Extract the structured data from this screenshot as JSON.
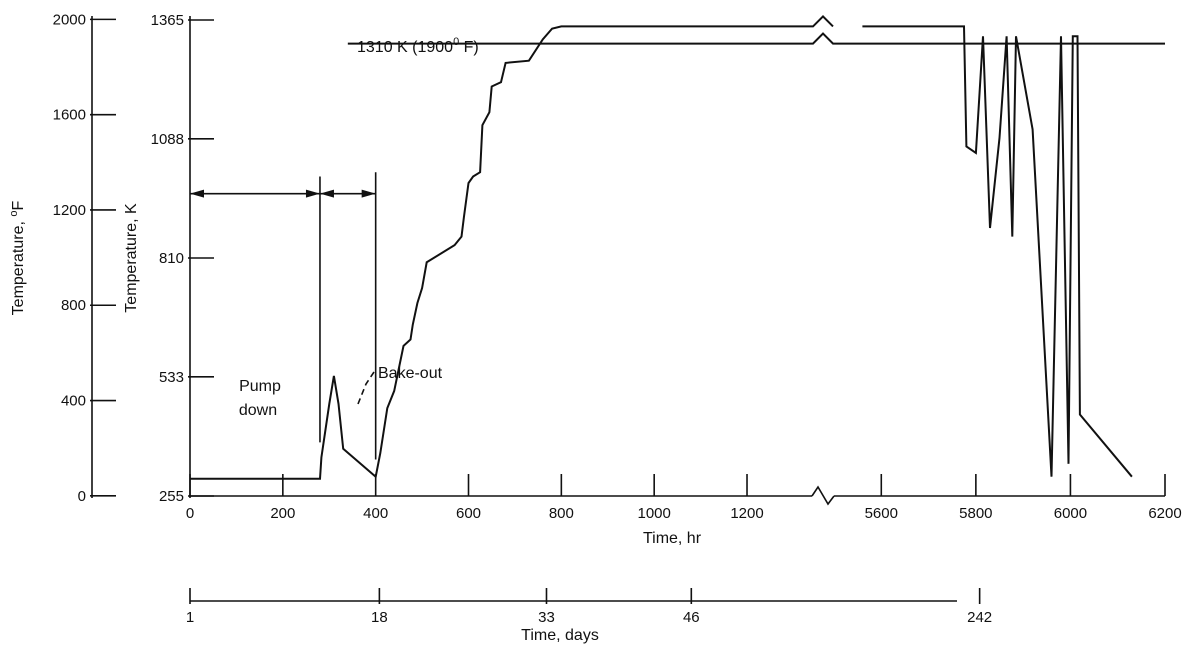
{
  "chart_data": {
    "type": "line",
    "xlabel": "Time, hr",
    "ylabel_k": "Temperature, K",
    "ylabel_f": "Temperature, °F",
    "days_label": "Time, days",
    "x_ticks_left": [
      0,
      200,
      400,
      600,
      800,
      1000,
      1200
    ],
    "x_ticks_right": [
      5600,
      5800,
      6000,
      6200
    ],
    "x_range_left": [
      0,
      1340
    ],
    "x_range_right": [
      5500,
      6200
    ],
    "ylim_k": [
      255,
      1365
    ],
    "y_ticks_k": [
      255,
      533,
      810,
      1088,
      1365
    ],
    "y_ticks_f": [
      0,
      400,
      800,
      1200,
      1600,
      2000
    ],
    "days_ticks": [
      {
        "day": "1",
        "hr": 0
      },
      {
        "day": "18",
        "hr": 408
      },
      {
        "day": "33",
        "hr": 768
      },
      {
        "day": "46",
        "hr": 1080
      },
      {
        "day": "242",
        "hr": 5808
      }
    ],
    "setpoint": {
      "label": "1310 K (1900",
      "sup": "0",
      "unit": " F)",
      "value_k": 1310
    },
    "annotations": {
      "pump_label_1": "Pump",
      "pump_label_2": "down",
      "bake_label": "Bake-out",
      "pump_start_hr": 0,
      "pump_end_hr": 280,
      "bake_end_hr": 400
    },
    "grid": false,
    "series": [
      {
        "points_hr_k": [
          [
            0,
            295
          ],
          [
            280,
            295
          ],
          [
            283,
            345
          ],
          [
            300,
            470
          ],
          [
            310,
            535
          ],
          [
            320,
            470
          ],
          [
            330,
            365
          ],
          [
            400,
            300
          ],
          [
            410,
            355
          ],
          [
            425,
            460
          ],
          [
            440,
            500
          ],
          [
            460,
            605
          ],
          [
            475,
            620
          ],
          [
            480,
            655
          ],
          [
            490,
            705
          ],
          [
            500,
            740
          ],
          [
            510,
            800
          ],
          [
            570,
            840
          ],
          [
            585,
            860
          ],
          [
            590,
            905
          ],
          [
            595,
            945
          ],
          [
            600,
            985
          ],
          [
            610,
            1000
          ],
          [
            625,
            1010
          ],
          [
            630,
            1120
          ],
          [
            645,
            1150
          ],
          [
            650,
            1210
          ],
          [
            670,
            1220
          ],
          [
            680,
            1265
          ],
          [
            730,
            1270
          ],
          [
            760,
            1320
          ],
          [
            780,
            1345
          ],
          [
            800,
            1350
          ],
          [
            1330,
            1350
          ]
        ]
      },
      {
        "points_hr_k": [
          [
            5560,
            1350
          ],
          [
            5775,
            1350
          ],
          [
            5780,
            1070
          ],
          [
            5800,
            1055
          ],
          [
            5815,
            1327
          ],
          [
            5830,
            880
          ],
          [
            5850,
            1090
          ],
          [
            5865,
            1327
          ],
          [
            5877,
            860
          ],
          [
            5885,
            1327
          ],
          [
            5920,
            1110
          ],
          [
            5960,
            300
          ],
          [
            5980,
            1327
          ],
          [
            5996,
            330
          ],
          [
            6005,
            1327
          ],
          [
            6015,
            1327
          ],
          [
            6020,
            445
          ],
          [
            6130,
            300
          ]
        ]
      }
    ]
  }
}
